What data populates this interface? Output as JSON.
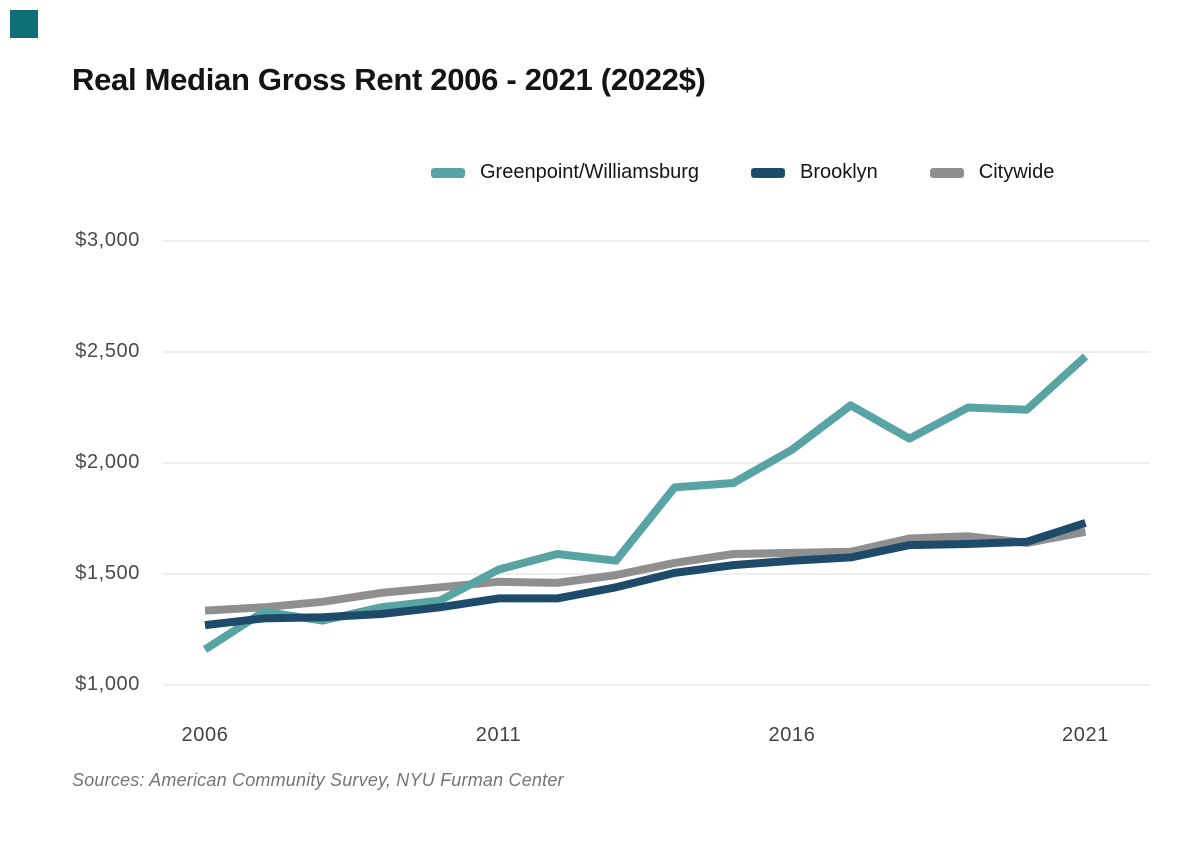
{
  "title": "Real Median Gross Rent 2006 - 2021 (2022$)",
  "source_note": "Sources: American Community Survey, NYU Furman Center",
  "corner_mark_color": "#0e6f74",
  "colors": {
    "background": "#ffffff",
    "grid": "#e8e8e8",
    "y_tick_text": "#4a4a4a",
    "x_tick_text": "#424242",
    "title_text": "#141414",
    "source_text": "#757575"
  },
  "legend": {
    "items": [
      {
        "label": "Greenpoint/Williamsburg",
        "color": "#58a3a4"
      },
      {
        "label": "Brooklyn",
        "color": "#1d4b69"
      },
      {
        "label": "Citywide",
        "color": "#8f8f8f"
      }
    ]
  },
  "chart_data": {
    "type": "line",
    "title": "Real Median Gross Rent 2006 - 2021 (2022$)",
    "x": [
      2006,
      2007,
      2008,
      2009,
      2010,
      2011,
      2012,
      2013,
      2014,
      2015,
      2016,
      2017,
      2018,
      2019,
      2020,
      2021
    ],
    "series": [
      {
        "name": "Greenpoint/Williamsburg",
        "color": "#58a3a4",
        "values": [
          1160,
          1330,
          1290,
          1350,
          1380,
          1520,
          1590,
          1560,
          1890,
          1910,
          2060,
          2260,
          2110,
          2250,
          2240,
          2480
        ]
      },
      {
        "name": "Brooklyn",
        "color": "#1d4b69",
        "values": [
          1270,
          1300,
          1305,
          1320,
          1350,
          1390,
          1390,
          1440,
          1505,
          1540,
          1560,
          1575,
          1630,
          1635,
          1645,
          1730
        ]
      },
      {
        "name": "Citywide",
        "color": "#8f8f8f",
        "values": [
          1335,
          1350,
          1375,
          1415,
          1440,
          1465,
          1460,
          1495,
          1550,
          1590,
          1595,
          1600,
          1660,
          1670,
          1640,
          1690
        ]
      }
    ],
    "xlabel": "",
    "ylabel": "",
    "ylim": [
      1000,
      3000
    ],
    "yticks": [
      {
        "value": 1000,
        "label": "$1,000"
      },
      {
        "value": 1500,
        "label": "$1,500"
      },
      {
        "value": 2000,
        "label": "$2,000"
      },
      {
        "value": 2500,
        "label": "$2,500"
      },
      {
        "value": 3000,
        "label": "$3,000"
      }
    ],
    "xticks": [
      {
        "value": 2006,
        "label": "2006"
      },
      {
        "value": 2011,
        "label": "2011"
      },
      {
        "value": 2016,
        "label": "2016"
      },
      {
        "value": 2021,
        "label": "2021"
      }
    ],
    "grid": true,
    "legend_position": "top",
    "z_order": [
      "Citywide",
      "Greenpoint/Williamsburg",
      "Brooklyn"
    ]
  }
}
